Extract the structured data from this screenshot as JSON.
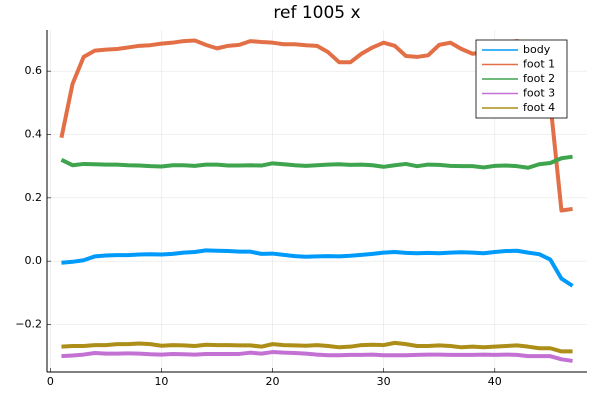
{
  "chart_data": {
    "type": "line",
    "title": "ref 1005 x",
    "x": [
      1,
      2,
      3,
      4,
      5,
      6,
      7,
      8,
      9,
      10,
      11,
      12,
      13,
      14,
      15,
      16,
      17,
      18,
      19,
      20,
      21,
      22,
      23,
      24,
      25,
      26,
      27,
      28,
      29,
      30,
      31,
      32,
      33,
      34,
      35,
      36,
      37,
      38,
      39,
      40,
      41,
      42,
      43,
      44,
      45,
      46,
      47
    ],
    "series": [
      {
        "name": "body",
        "color": "#009afa",
        "values": [
          -0.005,
          -0.002,
          0.003,
          0.015,
          0.018,
          0.019,
          0.019,
          0.021,
          0.022,
          0.021,
          0.023,
          0.027,
          0.029,
          0.034,
          0.033,
          0.032,
          0.03,
          0.03,
          0.023,
          0.024,
          0.02,
          0.016,
          0.014,
          0.015,
          0.016,
          0.015,
          0.017,
          0.02,
          0.023,
          0.027,
          0.029,
          0.026,
          0.025,
          0.026,
          0.025,
          0.027,
          0.028,
          0.027,
          0.025,
          0.029,
          0.032,
          0.033,
          0.027,
          0.022,
          0.005,
          -0.055,
          -0.078
        ]
      },
      {
        "name": "foot 1",
        "color": "#e36f47",
        "values": [
          0.39,
          0.56,
          0.645,
          0.665,
          0.668,
          0.67,
          0.675,
          0.68,
          0.682,
          0.687,
          0.69,
          0.695,
          0.697,
          0.683,
          0.672,
          0.68,
          0.683,
          0.695,
          0.692,
          0.69,
          0.685,
          0.685,
          0.682,
          0.68,
          0.66,
          0.628,
          0.628,
          0.655,
          0.675,
          0.69,
          0.68,
          0.648,
          0.645,
          0.65,
          0.683,
          0.69,
          0.67,
          0.655,
          0.66,
          0.68,
          0.69,
          0.695,
          0.685,
          0.65,
          0.5,
          0.16,
          0.165
        ]
      },
      {
        "name": "foot 2",
        "color": "#3ea44e",
        "values": [
          0.32,
          0.303,
          0.307,
          0.306,
          0.305,
          0.305,
          0.303,
          0.302,
          0.3,
          0.299,
          0.303,
          0.303,
          0.301,
          0.305,
          0.305,
          0.302,
          0.302,
          0.303,
          0.302,
          0.309,
          0.306,
          0.303,
          0.301,
          0.303,
          0.305,
          0.306,
          0.304,
          0.305,
          0.303,
          0.298,
          0.303,
          0.307,
          0.3,
          0.305,
          0.304,
          0.301,
          0.3,
          0.3,
          0.296,
          0.301,
          0.302,
          0.3,
          0.295,
          0.306,
          0.31,
          0.325,
          0.33
        ]
      },
      {
        "name": "foot 3",
        "color": "#c371d2",
        "values": [
          -0.3,
          -0.298,
          -0.295,
          -0.29,
          -0.292,
          -0.292,
          -0.291,
          -0.292,
          -0.294,
          -0.295,
          -0.293,
          -0.294,
          -0.295,
          -0.293,
          -0.293,
          -0.293,
          -0.293,
          -0.289,
          -0.292,
          -0.287,
          -0.289,
          -0.29,
          -0.292,
          -0.295,
          -0.297,
          -0.297,
          -0.296,
          -0.296,
          -0.295,
          -0.297,
          -0.297,
          -0.297,
          -0.296,
          -0.295,
          -0.295,
          -0.296,
          -0.296,
          -0.296,
          -0.295,
          -0.296,
          -0.295,
          -0.296,
          -0.3,
          -0.3,
          -0.3,
          -0.31,
          -0.315
        ]
      },
      {
        "name": "foot 4",
        "color": "#ac8e18",
        "values": [
          -0.27,
          -0.268,
          -0.268,
          -0.265,
          -0.265,
          -0.262,
          -0.262,
          -0.26,
          -0.262,
          -0.267,
          -0.265,
          -0.266,
          -0.268,
          -0.264,
          -0.265,
          -0.265,
          -0.266,
          -0.266,
          -0.27,
          -0.262,
          -0.265,
          -0.266,
          -0.267,
          -0.265,
          -0.268,
          -0.272,
          -0.27,
          -0.265,
          -0.264,
          -0.265,
          -0.258,
          -0.262,
          -0.268,
          -0.268,
          -0.266,
          -0.268,
          -0.272,
          -0.27,
          -0.272,
          -0.27,
          -0.268,
          -0.266,
          -0.27,
          -0.275,
          -0.275,
          -0.285,
          -0.285
        ]
      }
    ],
    "xlim": [
      -0.3,
      48.3
    ],
    "xticks": [
      0,
      10,
      20,
      30,
      40
    ],
    "ylim": [
      -0.35,
      0.73
    ],
    "yticks": [
      {
        "value": -0.2,
        "label": "−0.2"
      },
      {
        "value": 0,
        "label": "0.0"
      },
      0.2,
      0.4,
      0.6
    ],
    "grid": true,
    "legend": "top-right"
  }
}
